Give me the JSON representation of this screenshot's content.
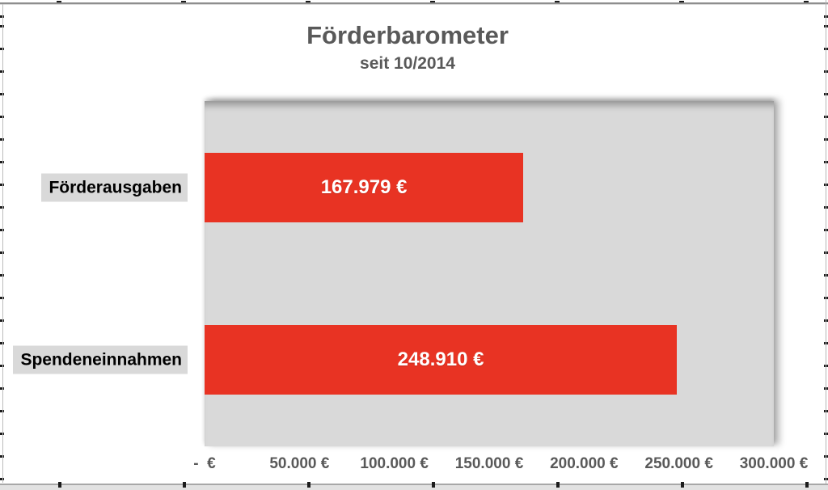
{
  "chart_data": {
    "type": "bar",
    "orientation": "horizontal",
    "title": "Förderbarometer",
    "subtitle": "seit 10/2014",
    "categories": [
      "Förderausgaben",
      "Spendeneinnahmen"
    ],
    "values": [
      167979,
      248910
    ],
    "value_labels": [
      "167.979 €",
      "248.910 €"
    ],
    "xlim": [
      0,
      300000
    ],
    "x_tick_interval": 50000,
    "x_tick_labels": [
      "-  €",
      "50.000 €",
      "100.000 €",
      "150.000 €",
      "200.000 €",
      "250.000 €",
      "300.000 €"
    ],
    "grid": false,
    "legend": false,
    "colors": {
      "bar": "#e83323",
      "plot_background": "#d9d9d9",
      "title_text": "#595959",
      "axis_text": "#595959",
      "category_text": "#000000",
      "category_highlight": "#d9d9d9",
      "value_text": "#ffffff"
    }
  }
}
